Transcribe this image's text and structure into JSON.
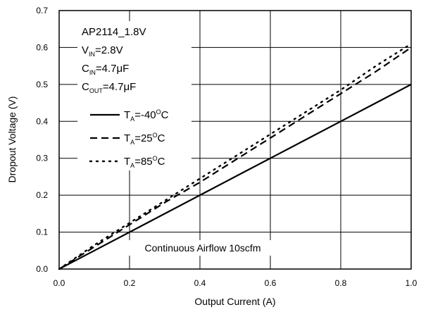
{
  "chart_data": {
    "type": "line",
    "xlabel": "Output Current (A)",
    "ylabel": "Dropout Voltage (V)",
    "xlim": [
      0.0,
      1.0
    ],
    "ylim": [
      0.0,
      0.7
    ],
    "x_ticks": [
      0.0,
      0.2,
      0.4,
      0.6,
      0.8,
      1.0
    ],
    "y_ticks": [
      0.0,
      0.1,
      0.2,
      0.3,
      0.4,
      0.5,
      0.6,
      0.7
    ],
    "x_tick_labels": [
      "0.0",
      "0.2",
      "0.4",
      "0.6",
      "0.8",
      "1.0"
    ],
    "y_tick_labels": [
      "0.0",
      "0.1",
      "0.2",
      "0.3",
      "0.4",
      "0.5",
      "0.6",
      "0.7"
    ],
    "grid": true,
    "legend_position": "top-left",
    "conditions": {
      "device": "AP2114_1.8V",
      "vin": {
        "main": "V",
        "sub": "IN",
        "rest": "=2.8V"
      },
      "cin": {
        "main": "C",
        "sub": "IN",
        "rest": "=4.7μF"
      },
      "cout": {
        "main": "C",
        "sub": "OUT",
        "rest": "=4.7μF"
      }
    },
    "annotation": "Continuous Airflow 10scfm",
    "series": [
      {
        "label": {
          "main": "T",
          "sub": "A",
          "pre": "=-40",
          "sup": "O",
          "post": "C"
        },
        "style": "solid",
        "x": [
          0.0,
          0.1,
          0.2,
          0.3,
          0.4,
          0.5,
          0.6,
          0.7,
          0.8,
          0.9,
          1.0
        ],
        "y": [
          0.0,
          0.05,
          0.1,
          0.15,
          0.2,
          0.25,
          0.3,
          0.35,
          0.4,
          0.45,
          0.5
        ]
      },
      {
        "label": {
          "main": "T",
          "sub": "A",
          "pre": "=25",
          "sup": "O",
          "post": "C"
        },
        "style": "dashed",
        "x": [
          0.0,
          0.1,
          0.2,
          0.3,
          0.4,
          0.5,
          0.6,
          0.7,
          0.8,
          0.9,
          1.0
        ],
        "y": [
          0.0,
          0.06,
          0.12,
          0.18,
          0.235,
          0.295,
          0.355,
          0.415,
          0.475,
          0.535,
          0.6
        ]
      },
      {
        "label": {
          "main": "T",
          "sub": "A",
          "pre": "=85",
          "sup": "O",
          "post": "C"
        },
        "style": "dotted",
        "x": [
          0.0,
          0.1,
          0.2,
          0.3,
          0.4,
          0.5,
          0.6,
          0.7,
          0.8,
          0.9,
          1.0
        ],
        "y": [
          0.0,
          0.065,
          0.125,
          0.185,
          0.245,
          0.305,
          0.365,
          0.425,
          0.485,
          0.55,
          0.61
        ]
      }
    ]
  }
}
